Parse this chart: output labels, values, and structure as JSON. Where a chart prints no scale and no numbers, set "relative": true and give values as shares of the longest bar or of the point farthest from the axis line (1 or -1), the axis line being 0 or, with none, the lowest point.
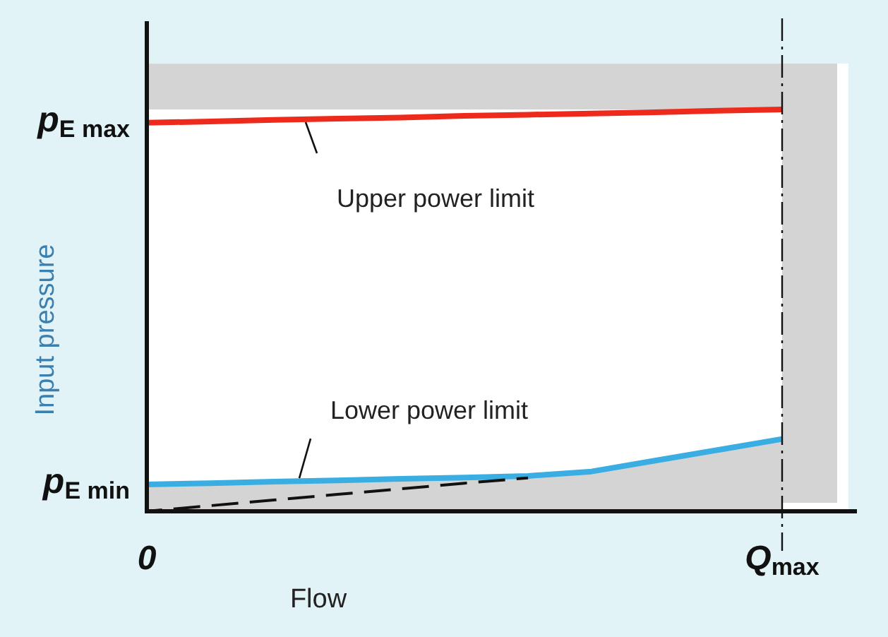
{
  "chart_data": {
    "type": "line",
    "xlabel": "Flow",
    "ylabel": "Input pressure",
    "relative": true,
    "categories": [
      "0",
      null,
      null,
      null,
      null,
      null,
      null,
      null,
      null,
      null,
      "Q$_{max}$",
      null
    ],
    "series": [
      {
        "color": "#ee2a1c",
        "values": [
          0.967,
          0.97,
          0.974,
          0.977,
          0.98,
          0.984,
          0.987,
          0.99,
          0.993,
          0.997,
          1.0,
          null
        ]
      },
      {
        "type": "area",
        "color": "#3aaee3",
        "values": [
          0.067,
          0.07,
          0.074,
          0.077,
          0.081,
          0.084,
          0.088,
          0.099,
          0.126,
          0.153,
          0.18,
          null
        ]
      },
      {
        "color": "#111111",
        "values": [
          0,
          0.014,
          0.028,
          0.042,
          0.056,
          0.07,
          0.083,
          null,
          null,
          null,
          null,
          null
        ],
        "line_style": "dashed"
      }
    ],
    "bands": [
      {
        "axis": "y",
        "from": 1.0,
        "to": 1.114,
        "color": "#d4d4d4"
      }
    ],
    "ref_lines": [
      {
        "axis": "x",
        "value": "Q$_{max}$",
        "color": "#111111",
        "line_style": "dashed"
      }
    ],
    "annotations": [
      "Upper power limit",
      "Lower power limit",
      "p$_{E max}$",
      "p$_{E min}$"
    ],
    "marker": "none"
  }
}
